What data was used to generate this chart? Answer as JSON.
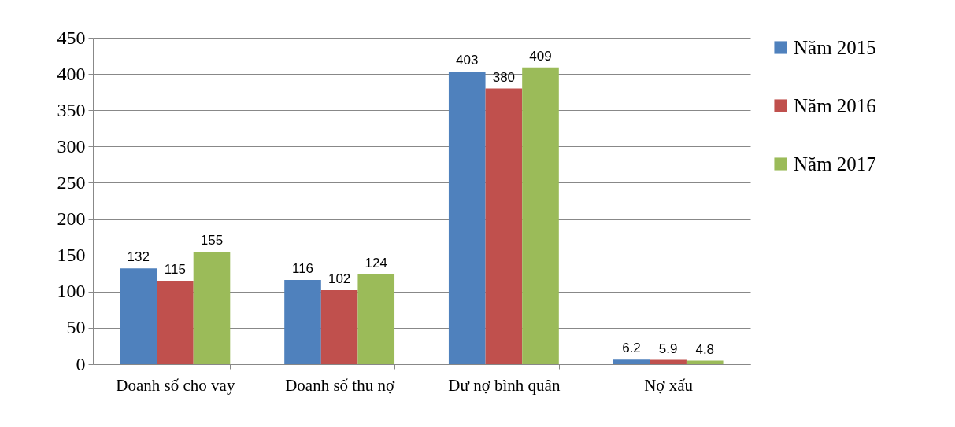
{
  "chart_data": {
    "type": "bar",
    "categories": [
      "Doanh số cho vay",
      "Doanh số thu nợ",
      "Dư nợ bình quân",
      "Nợ xấu"
    ],
    "series": [
      {
        "name": "Năm 2015",
        "color": "#4f81bd",
        "values": [
          132,
          116,
          403,
          6.2
        ]
      },
      {
        "name": "Năm 2016",
        "color": "#c0504d",
        "values": [
          115,
          102,
          380,
          5.9
        ]
      },
      {
        "name": "Năm 2017",
        "color": "#9bbb59",
        "values": [
          155,
          124,
          409,
          4.8
        ]
      }
    ],
    "ylim": [
      0,
      450
    ],
    "yticks": [
      0,
      50,
      100,
      150,
      200,
      250,
      300,
      350,
      400,
      450
    ],
    "grid": "y",
    "legend": "right",
    "data_labels": true
  }
}
